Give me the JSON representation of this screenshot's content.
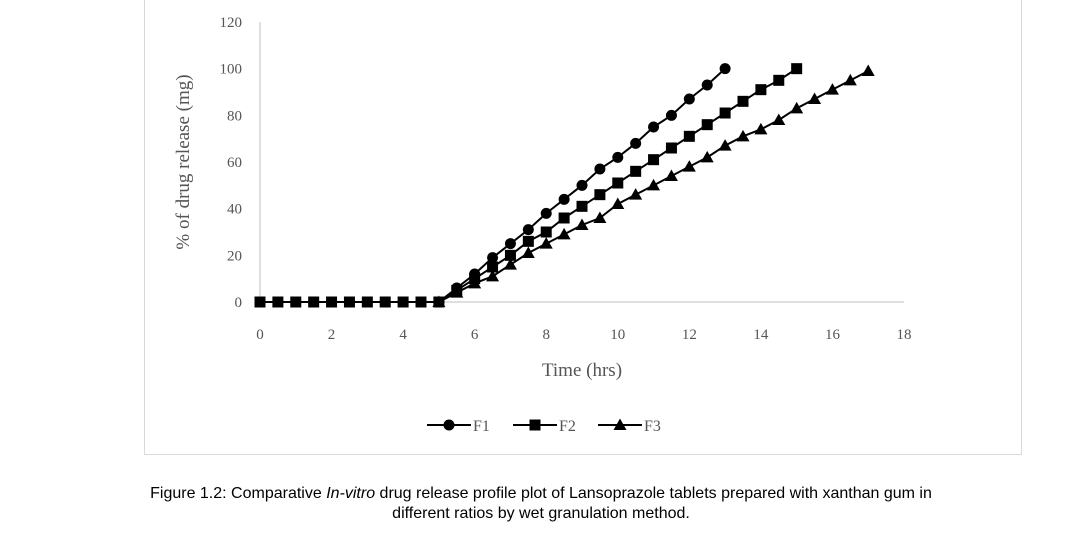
{
  "chart_data": {
    "type": "line",
    "title": "",
    "xlabel": "Time (hrs)",
    "ylabel": "% of drug release (mg)",
    "xlim": [
      0,
      18
    ],
    "ylim": [
      0,
      120
    ],
    "xticks": [
      0,
      2,
      4,
      6,
      8,
      10,
      12,
      14,
      16,
      18
    ],
    "yticks": [
      0,
      20,
      40,
      60,
      80,
      100,
      120
    ],
    "grid": false,
    "legend": "bottom",
    "series": [
      {
        "name": "F1",
        "marker": "circle",
        "x": [
          0,
          0.5,
          1,
          1.5,
          2,
          2.5,
          3,
          3.5,
          4,
          4.5,
          5,
          5.5,
          6,
          6.5,
          7,
          7.5,
          8,
          8.5,
          9,
          9.5,
          10,
          10.5,
          11,
          11.5,
          12,
          12.5,
          13
        ],
        "y": [
          0,
          0,
          0,
          0,
          0,
          0,
          0,
          0,
          0,
          0,
          0,
          6,
          12,
          19,
          25,
          31,
          38,
          44,
          50,
          57,
          62,
          68,
          75,
          80,
          87,
          93,
          100
        ]
      },
      {
        "name": "F2",
        "marker": "square",
        "x": [
          0,
          0.5,
          1,
          1.5,
          2,
          2.5,
          3,
          3.5,
          4,
          4.5,
          5,
          5.5,
          6,
          6.5,
          7,
          7.5,
          8,
          8.5,
          9,
          9.5,
          10,
          10.5,
          11,
          11.5,
          12,
          12.5,
          13,
          13.5,
          14,
          14.5,
          15
        ],
        "y": [
          0,
          0,
          0,
          0,
          0,
          0,
          0,
          0,
          0,
          0,
          0,
          5,
          10,
          15,
          20,
          26,
          30,
          36,
          41,
          46,
          51,
          56,
          61,
          66,
          71,
          76,
          81,
          86,
          91,
          95,
          100
        ]
      },
      {
        "name": "F3",
        "marker": "triangle",
        "x": [
          5,
          5.5,
          6,
          6.5,
          7,
          7.5,
          8,
          8.5,
          9,
          9.5,
          10,
          10.5,
          11,
          11.5,
          12,
          12.5,
          13,
          13.5,
          14,
          14.5,
          15,
          15.5,
          16,
          16.5,
          17
        ],
        "y": [
          0,
          4,
          8,
          11,
          16,
          21,
          25,
          29,
          33,
          36,
          42,
          46,
          50,
          54,
          58,
          62,
          67,
          71,
          74,
          78,
          83,
          87,
          91,
          95,
          99
        ]
      }
    ]
  },
  "caption": {
    "prefix": "Figure 1.2: Comparative ",
    "italic": "In-vitro",
    "suffix": " drug release profile plot of Lansoprazole tablets prepared with xanthan gum in",
    "line2": "different ratios by wet granulation method."
  }
}
